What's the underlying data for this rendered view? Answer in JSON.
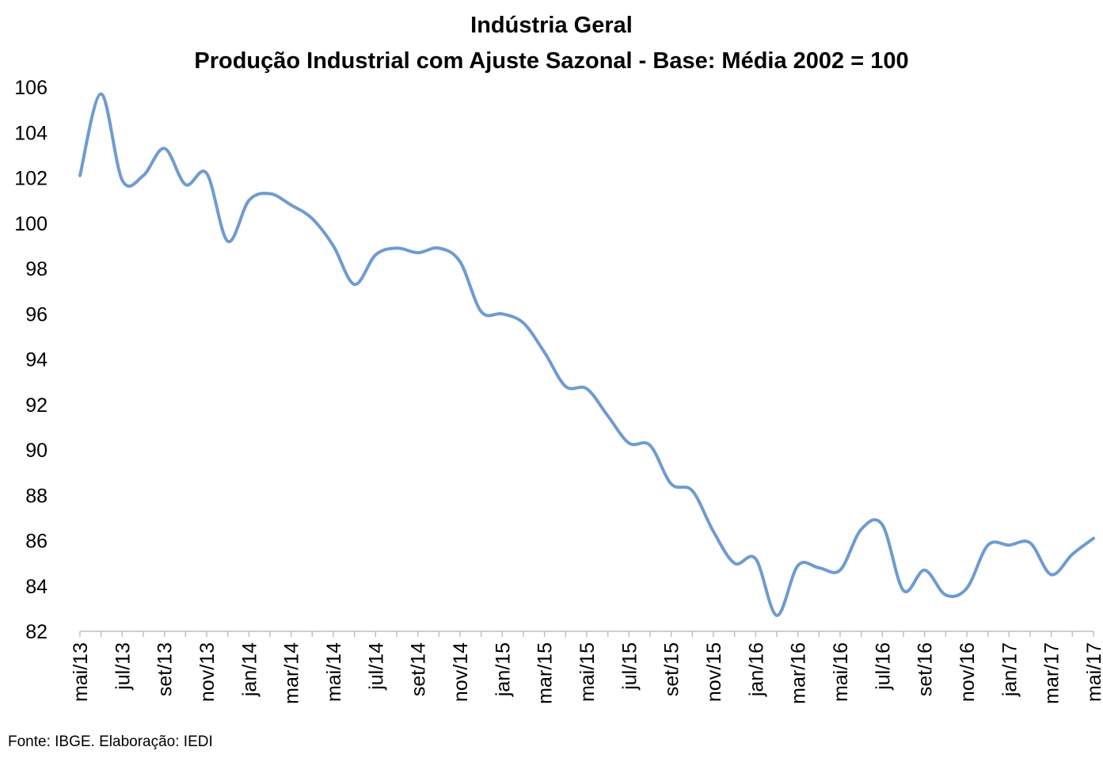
{
  "source_note": "Fonte: IBGE. Elaboração: IEDI",
  "colors": {
    "line": "#6f9bd0",
    "axis": "#bfbfbf"
  },
  "chart_data": {
    "type": "line",
    "title": "Indústria Geral",
    "subtitle": "Produção Industrial com Ajuste Sazonal - Base: Média 2002 = 100",
    "xlabel": "",
    "ylabel": "",
    "ylim": [
      82,
      106
    ],
    "yticks": [
      82,
      84,
      86,
      88,
      90,
      92,
      94,
      96,
      98,
      100,
      102,
      104,
      106
    ],
    "grid": false,
    "x": [
      "mai/13",
      "jun/13",
      "jul/13",
      "ago/13",
      "set/13",
      "out/13",
      "nov/13",
      "dez/13",
      "jan/14",
      "fev/14",
      "mar/14",
      "abr/14",
      "mai/14",
      "jun/14",
      "jul/14",
      "ago/14",
      "set/14",
      "out/14",
      "nov/14",
      "dez/14",
      "jan/15",
      "fev/15",
      "mar/15",
      "abr/15",
      "mai/15",
      "jun/15",
      "jul/15",
      "ago/15",
      "set/15",
      "out/15",
      "nov/15",
      "dez/15",
      "jan/16",
      "fev/16",
      "mar/16",
      "abr/16",
      "mai/16",
      "jun/16",
      "jul/16",
      "ago/16",
      "set/16",
      "out/16",
      "nov/16",
      "dez/16",
      "jan/17",
      "fev/17",
      "mar/17",
      "abr/17",
      "mai/17"
    ],
    "xtick_labels": [
      "mai/13",
      "jul/13",
      "set/13",
      "nov/13",
      "jan/14",
      "mar/14",
      "mai/14",
      "jul/14",
      "set/14",
      "nov/14",
      "jan/15",
      "mar/15",
      "mai/15",
      "jul/15",
      "set/15",
      "nov/15",
      "jan/16",
      "mar/16",
      "mai/16",
      "jul/16",
      "set/16",
      "nov/16",
      "jan/17",
      "mar/17",
      "mai/17"
    ],
    "series": [
      {
        "values": [
          102.1,
          105.7,
          101.9,
          102.1,
          103.3,
          101.7,
          102.2,
          99.2,
          101.0,
          101.3,
          100.8,
          100.2,
          99.0,
          97.3,
          98.6,
          98.9,
          98.7,
          98.9,
          98.3,
          96.1,
          96.0,
          95.6,
          94.3,
          92.8,
          92.7,
          91.5,
          90.3,
          90.2,
          88.5,
          88.2,
          86.4,
          85.0,
          85.2,
          82.7,
          84.9,
          84.8,
          84.7,
          86.5,
          86.7,
          83.8,
          84.7,
          83.6,
          83.9,
          85.8,
          85.8,
          85.9,
          84.5,
          85.4,
          86.1
        ]
      }
    ]
  }
}
